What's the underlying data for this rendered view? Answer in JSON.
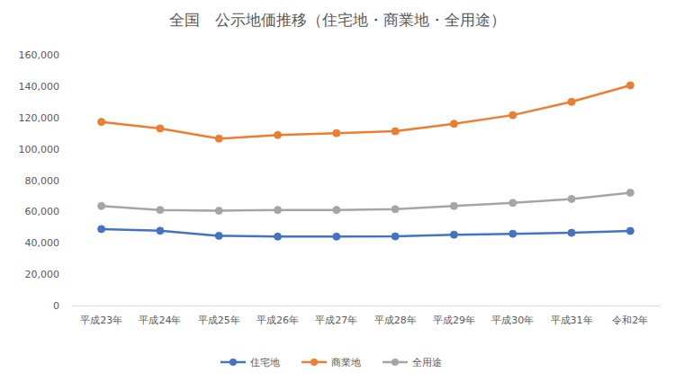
{
  "chart_data": {
    "type": "line",
    "title": "全国　公示地価推移（住宅地・商業地・全用途）",
    "categories": [
      "平成23年",
      "平成24年",
      "平成25年",
      "平成26年",
      "平成27年",
      "平成28年",
      "平成29年",
      "平成30年",
      "平成31年",
      "令和2年"
    ],
    "series": [
      {
        "name": "住宅地",
        "color": "#4472c4",
        "values": [
          48800,
          47700,
          44500,
          44000,
          44000,
          44100,
          45200,
          45800,
          46400,
          47600
        ]
      },
      {
        "name": "商業地",
        "color": "#ed7d31",
        "values": [
          117200,
          113000,
          106500,
          108800,
          110000,
          111200,
          116000,
          121500,
          130000,
          140500
        ]
      },
      {
        "name": "全用途",
        "color": "#a5a5a5",
        "values": [
          63500,
          61000,
          60500,
          61000,
          61000,
          61500,
          63500,
          65500,
          68000,
          72000
        ]
      }
    ],
    "ylim": [
      0,
      160000
    ],
    "yticks": [
      0,
      {
        "value": 20000,
        "label": "20,000"
      },
      {
        "value": 40000,
        "label": "40,000"
      },
      {
        "value": 60000,
        "label": "60,000"
      },
      {
        "value": 80000,
        "label": "80,000"
      },
      {
        "value": 100000,
        "label": "100,000"
      },
      {
        "value": 120000,
        "label": "120,000"
      },
      {
        "value": 140000,
        "label": "140,000"
      },
      {
        "value": 160000,
        "label": "160,000"
      }
    ],
    "grid": false,
    "legend": "bottom",
    "marker": "circle",
    "line_style": "solid"
  }
}
